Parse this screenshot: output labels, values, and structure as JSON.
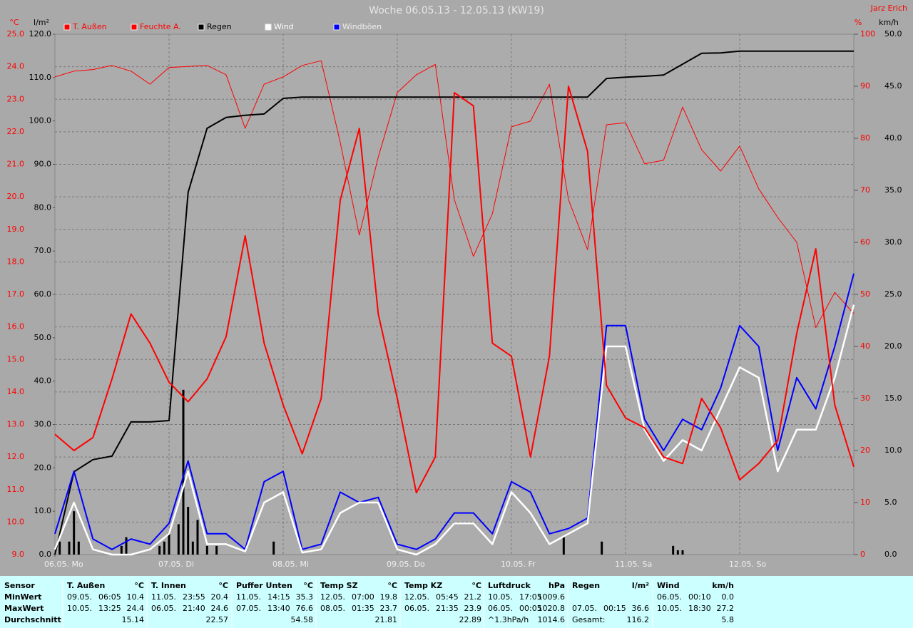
{
  "chart_data": {
    "type": "line",
    "title": "Woche 06.05.13 - 12.05.13 (KW19)",
    "author": "Jarz Erich",
    "y_label": "°C",
    "y2_label": "l/m²",
    "y3_label": "%",
    "y4_label": "km/h",
    "xlim": [
      0,
      168
    ],
    "xticks": [
      {
        "value": 0,
        "label": "06.05. Mo"
      },
      {
        "value": 24,
        "label": "07.05. Di"
      },
      {
        "value": 48,
        "label": "08.05. Mi"
      },
      {
        "value": 72,
        "label": "09.05. Do"
      },
      {
        "value": 96,
        "label": "10.05. Fr"
      },
      {
        "value": 120,
        "label": "11.05. Sa"
      },
      {
        "value": 144,
        "label": "12.05. So"
      }
    ],
    "ylim": [
      9,
      25
    ],
    "yticks": [
      {
        "value": 9,
        "label": "9.0"
      },
      {
        "value": 10,
        "label": "10.0"
      },
      {
        "value": 11,
        "label": "11.0"
      },
      {
        "value": 12,
        "label": "12.0"
      },
      {
        "value": 13,
        "label": "13.0"
      },
      {
        "value": 14,
        "label": "14.0"
      },
      {
        "value": 15,
        "label": "15.0"
      },
      {
        "value": 16,
        "label": "16.0"
      },
      {
        "value": 17,
        "label": "17.0"
      },
      {
        "value": 18,
        "label": "18.0"
      },
      {
        "value": 19,
        "label": "19.0"
      },
      {
        "value": 20,
        "label": "20.0"
      },
      {
        "value": 21,
        "label": "21.0"
      },
      {
        "value": 22,
        "label": "22.0"
      },
      {
        "value": 23,
        "label": "23.0"
      },
      {
        "value": 24,
        "label": "24.0"
      },
      {
        "value": 25,
        "label": "25.0"
      }
    ],
    "y2lim": [
      0,
      120
    ],
    "y2ticks": [
      {
        "value": 0,
        "label": "0.0"
      },
      {
        "value": 10,
        "label": "10.0"
      },
      {
        "value": 20,
        "label": "20.0"
      },
      {
        "value": 30,
        "label": "30.0"
      },
      {
        "value": 40,
        "label": "40.0"
      },
      {
        "value": 50,
        "label": "50.0"
      },
      {
        "value": 60,
        "label": "60.0"
      },
      {
        "value": 70,
        "label": "70.0"
      },
      {
        "value": 80,
        "label": "80.0"
      },
      {
        "value": 90,
        "label": "90.0"
      },
      {
        "value": 100,
        "label": "100.0"
      },
      {
        "value": 110,
        "label": "110.0"
      },
      {
        "value": 120,
        "label": "120.0"
      }
    ],
    "y3lim": [
      0,
      100
    ],
    "y3ticks": [
      0,
      10,
      20,
      30,
      40,
      50,
      60,
      70,
      80,
      90,
      100
    ],
    "y4lim": [
      0,
      50
    ],
    "y4ticks": [
      {
        "value": 0,
        "label": "0.0"
      },
      {
        "value": 5,
        "label": "5.0"
      },
      {
        "value": 10,
        "label": "10.0"
      },
      {
        "value": 15,
        "label": "15.0"
      },
      {
        "value": 20,
        "label": "20.0"
      },
      {
        "value": 25,
        "label": "25.0"
      },
      {
        "value": 30,
        "label": "30.0"
      },
      {
        "value": 35,
        "label": "35.0"
      },
      {
        "value": 40,
        "label": "40.0"
      },
      {
        "value": 45,
        "label": "45.0"
      },
      {
        "value": 50,
        "label": "50.0"
      }
    ],
    "grid": true,
    "x": [
      0,
      4,
      8,
      12,
      16,
      20,
      24,
      28,
      32,
      36,
      40,
      44,
      48,
      52,
      56,
      60,
      64,
      68,
      72,
      76,
      80,
      84,
      88,
      92,
      96,
      100,
      104,
      108,
      112,
      116,
      120,
      124,
      128,
      132,
      136,
      140,
      144,
      148,
      152,
      156,
      160,
      164,
      168
    ],
    "series": [
      {
        "name": "T. Außen",
        "color": "#ff0000",
        "axis": "y",
        "values": [
          12.7,
          12.2,
          12.6,
          14.4,
          16.4,
          15.5,
          14.3,
          13.7,
          14.4,
          15.7,
          18.8,
          15.5,
          13.6,
          12.1,
          13.8,
          19.9,
          22.1,
          16.4,
          13.8,
          10.9,
          12.0,
          23.2,
          22.8,
          15.5,
          15.1,
          12.0,
          15.1,
          23.4,
          21.4,
          14.2,
          13.2,
          12.9,
          12.0,
          11.8,
          13.8,
          12.9,
          11.3,
          11.8,
          12.5,
          15.8,
          18.4,
          13.6,
          11.7
        ]
      },
      {
        "name": "Feuchte A.",
        "color": "#ff0000",
        "axis": "y3",
        "values": [
          91.8,
          92.9,
          93.2,
          94.0,
          92.9,
          90.4,
          93.6,
          93.8,
          94.0,
          92.2,
          81.9,
          90.4,
          91.8,
          94.0,
          94.9,
          79.2,
          61.4,
          76.4,
          88.8,
          92.2,
          94.2,
          68.2,
          57.3,
          65.5,
          82.2,
          83.3,
          90.4,
          68.2,
          58.6,
          82.6,
          83.0,
          75.1,
          75.8,
          86.0,
          77.8,
          73.7,
          78.5,
          70.3,
          64.8,
          60.0,
          43.6,
          50.4,
          46.3
        ]
      },
      {
        "name": "Regen",
        "color": "#000000",
        "axis": "y2",
        "values": [
          0,
          19.1,
          21.9,
          22.7,
          30.6,
          30.6,
          30.9,
          83.5,
          98.3,
          100.8,
          101.3,
          101.6,
          105.2,
          105.5,
          105.5,
          105.5,
          105.5,
          105.5,
          105.5,
          105.5,
          105.5,
          105.5,
          105.5,
          105.5,
          105.5,
          105.5,
          105.5,
          105.5,
          105.5,
          109.8,
          110.1,
          110.3,
          110.6,
          113.1,
          115.6,
          115.7,
          116.1,
          116.1,
          116.1,
          116.1,
          116.1,
          116.1,
          116.1
        ]
      },
      {
        "name": "Wind",
        "color": "#ffffff",
        "axis": "y4",
        "values": [
          0.5,
          5,
          0.5,
          0,
          0,
          0.5,
          2,
          8,
          1,
          1,
          0.3,
          5,
          6,
          0.2,
          0.5,
          4,
          5,
          5,
          0.5,
          0,
          1,
          3,
          3,
          1,
          6,
          4,
          1,
          2,
          3,
          20,
          20,
          12,
          9,
          11,
          10,
          14,
          18,
          17,
          8,
          12,
          12,
          17,
          24
        ]
      },
      {
        "name": "Windböen",
        "color": "#0000ff",
        "axis": "y4",
        "values": [
          2,
          8,
          1.5,
          0.5,
          1.5,
          1,
          3,
          9,
          2,
          2,
          0.5,
          7,
          8,
          0.5,
          1,
          6,
          5,
          5.5,
          1,
          0.5,
          1.5,
          4,
          4,
          2,
          7,
          6,
          2,
          2.5,
          3.5,
          22,
          22,
          13,
          10,
          13,
          12,
          16,
          22,
          20,
          10,
          17,
          14,
          20,
          27
        ]
      }
    ],
    "bars": {
      "color": "#000000",
      "axis": "y2",
      "x": [
        1,
        3,
        4,
        5,
        14,
        15,
        22,
        23,
        24,
        26,
        27,
        28,
        29,
        30,
        32,
        34,
        46,
        107,
        115,
        130,
        131,
        132
      ],
      "values": [
        3,
        3,
        10,
        3,
        2,
        4,
        2,
        3,
        5,
        7,
        38,
        11,
        3,
        8,
        2,
        2,
        3,
        4,
        3,
        2,
        1,
        1
      ]
    }
  },
  "stats": {
    "row_labels": [
      "Sensor",
      "MinWert",
      "MaxWert",
      "Durchschnitt"
    ],
    "columns": [
      {
        "name": "T. Außen",
        "unit": "°C",
        "rows": [
          [
            "09.05.",
            "06:05",
            "10.4"
          ],
          [
            "10.05.",
            "13:25",
            "24.4"
          ],
          [
            "15.14"
          ]
        ]
      },
      {
        "name": "T. Innen",
        "unit": "°C",
        "rows": [
          [
            "11.05.",
            "23:55",
            "20.4"
          ],
          [
            "06.05.",
            "21:40",
            "24.6"
          ],
          [
            "22.57"
          ]
        ]
      },
      {
        "name": "Puffer Unten",
        "unit": "°C",
        "rows": [
          [
            "11.05.",
            "14:15",
            "35.3"
          ],
          [
            "07.05.",
            "13:40",
            "76.6"
          ],
          [
            "54.58"
          ]
        ]
      },
      {
        "name": "Temp SZ",
        "unit": "°C",
        "rows": [
          [
            "12.05.",
            "07:00",
            "19.8"
          ],
          [
            "08.05.",
            "01:35",
            "23.7"
          ],
          [
            "21.81"
          ]
        ]
      },
      {
        "name": "Temp KZ",
        "unit": "°C",
        "rows": [
          [
            "12.05.",
            "05:45",
            "21.2"
          ],
          [
            "06.05.",
            "21:35",
            "23.9"
          ],
          [
            "22.89"
          ]
        ]
      },
      {
        "name": "Luftdruck",
        "unit": "hPa",
        "rows": [
          [
            "10.05.",
            "17:05",
            "1009.6"
          ],
          [
            "06.05.",
            "00:05",
            "1020.8"
          ],
          [
            "^1.3hPa/h",
            "1014.6"
          ]
        ]
      },
      {
        "name": "Regen",
        "unit": "l/m²",
        "rows": [
          [],
          [
            "07.05.",
            "00:15",
            "36.6"
          ],
          [
            "Gesamt:",
            "116.2"
          ]
        ]
      },
      {
        "name": "Wind",
        "unit": "km/h",
        "rows": [
          [
            "06.05.",
            "00:10",
            "0.0"
          ],
          [
            "10.05.",
            "18:30",
            "27.2"
          ],
          [
            "5.8"
          ]
        ]
      }
    ]
  }
}
